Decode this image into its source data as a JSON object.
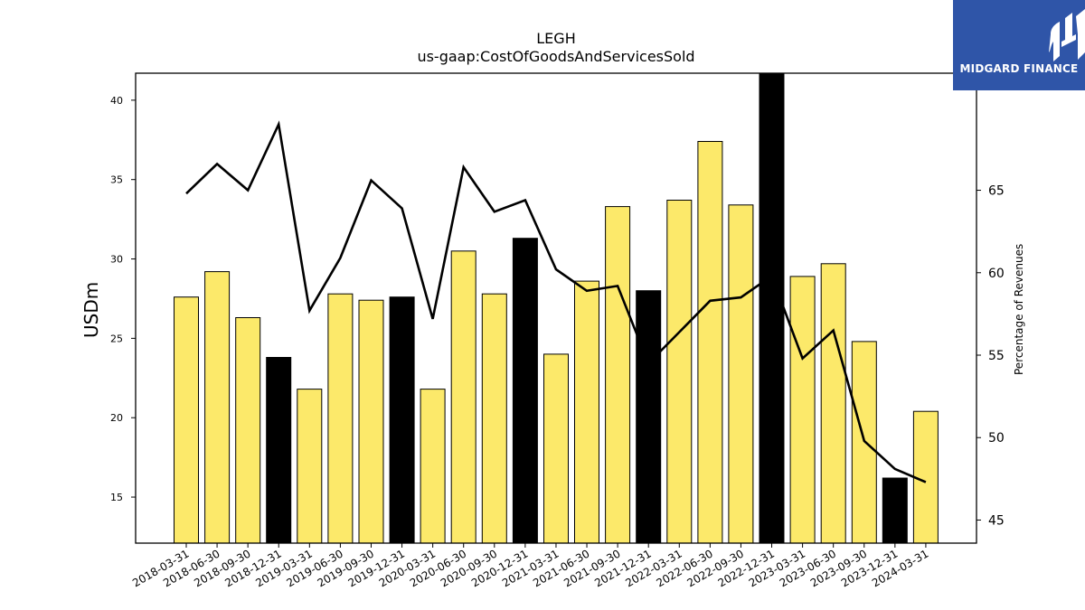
{
  "chart_data": {
    "type": "bar",
    "title": "LEGH",
    "subtitle": "us-gaap:CostOfGoodsAndServicesSold",
    "ylabel": "USDm",
    "y2label": "Percentage of Revenues",
    "categories": [
      "2018-03-31",
      "2018-06-30",
      "2018-09-30",
      "2018-12-31",
      "2019-03-31",
      "2019-06-30",
      "2019-09-30",
      "2019-12-31",
      "2020-03-31",
      "2020-06-30",
      "2020-09-30",
      "2020-12-31",
      "2021-03-31",
      "2021-06-30",
      "2021-09-30",
      "2021-12-31",
      "2022-03-31",
      "2022-06-30",
      "2022-09-30",
      "2022-12-31",
      "2023-03-31",
      "2023-06-30",
      "2023-09-30",
      "2023-12-31",
      "2024-03-31"
    ],
    "series": [
      {
        "type": "bar",
        "axis": "left",
        "values": [
          27.6,
          29.2,
          26.3,
          23.8,
          21.8,
          27.8,
          27.4,
          27.6,
          21.8,
          30.5,
          27.8,
          31.3,
          24.0,
          28.6,
          33.3,
          28.0,
          33.7,
          37.4,
          33.4,
          41.7,
          28.9,
          29.7,
          24.8,
          16.2,
          20.4
        ],
        "colors": [
          "#fce96a",
          "#fce96a",
          "#fce96a",
          "#000000",
          "#fce96a",
          "#fce96a",
          "#fce96a",
          "#000000",
          "#fce96a",
          "#fce96a",
          "#fce96a",
          "#000000",
          "#fce96a",
          "#fce96a",
          "#fce96a",
          "#000000",
          "#fce96a",
          "#fce96a",
          "#fce96a",
          "#000000",
          "#fce96a",
          "#fce96a",
          "#fce96a",
          "#000000",
          "#fce96a"
        ]
      },
      {
        "type": "line",
        "axis": "right",
        "color": "#000000",
        "values": [
          64.8,
          66.6,
          65.0,
          69.0,
          57.7,
          60.9,
          65.6,
          63.9,
          57.2,
          66.4,
          63.7,
          64.4,
          60.2,
          58.9,
          59.2,
          54.5,
          56.4,
          58.3,
          58.5,
          59.8,
          54.8,
          56.5,
          49.8,
          48.1,
          47.3
        ]
      }
    ],
    "ylim": [
      12.1,
      41.7
    ],
    "y2lim": [
      43.6,
      72.1
    ],
    "yticks": [
      15,
      20,
      25,
      30,
      35,
      40
    ],
    "y2ticks": [
      45,
      50,
      55,
      60,
      65
    ],
    "grid": false,
    "legend": "none"
  },
  "logo": {
    "text": "MIDGARD FINANCE",
    "color": "#2f55a8"
  }
}
